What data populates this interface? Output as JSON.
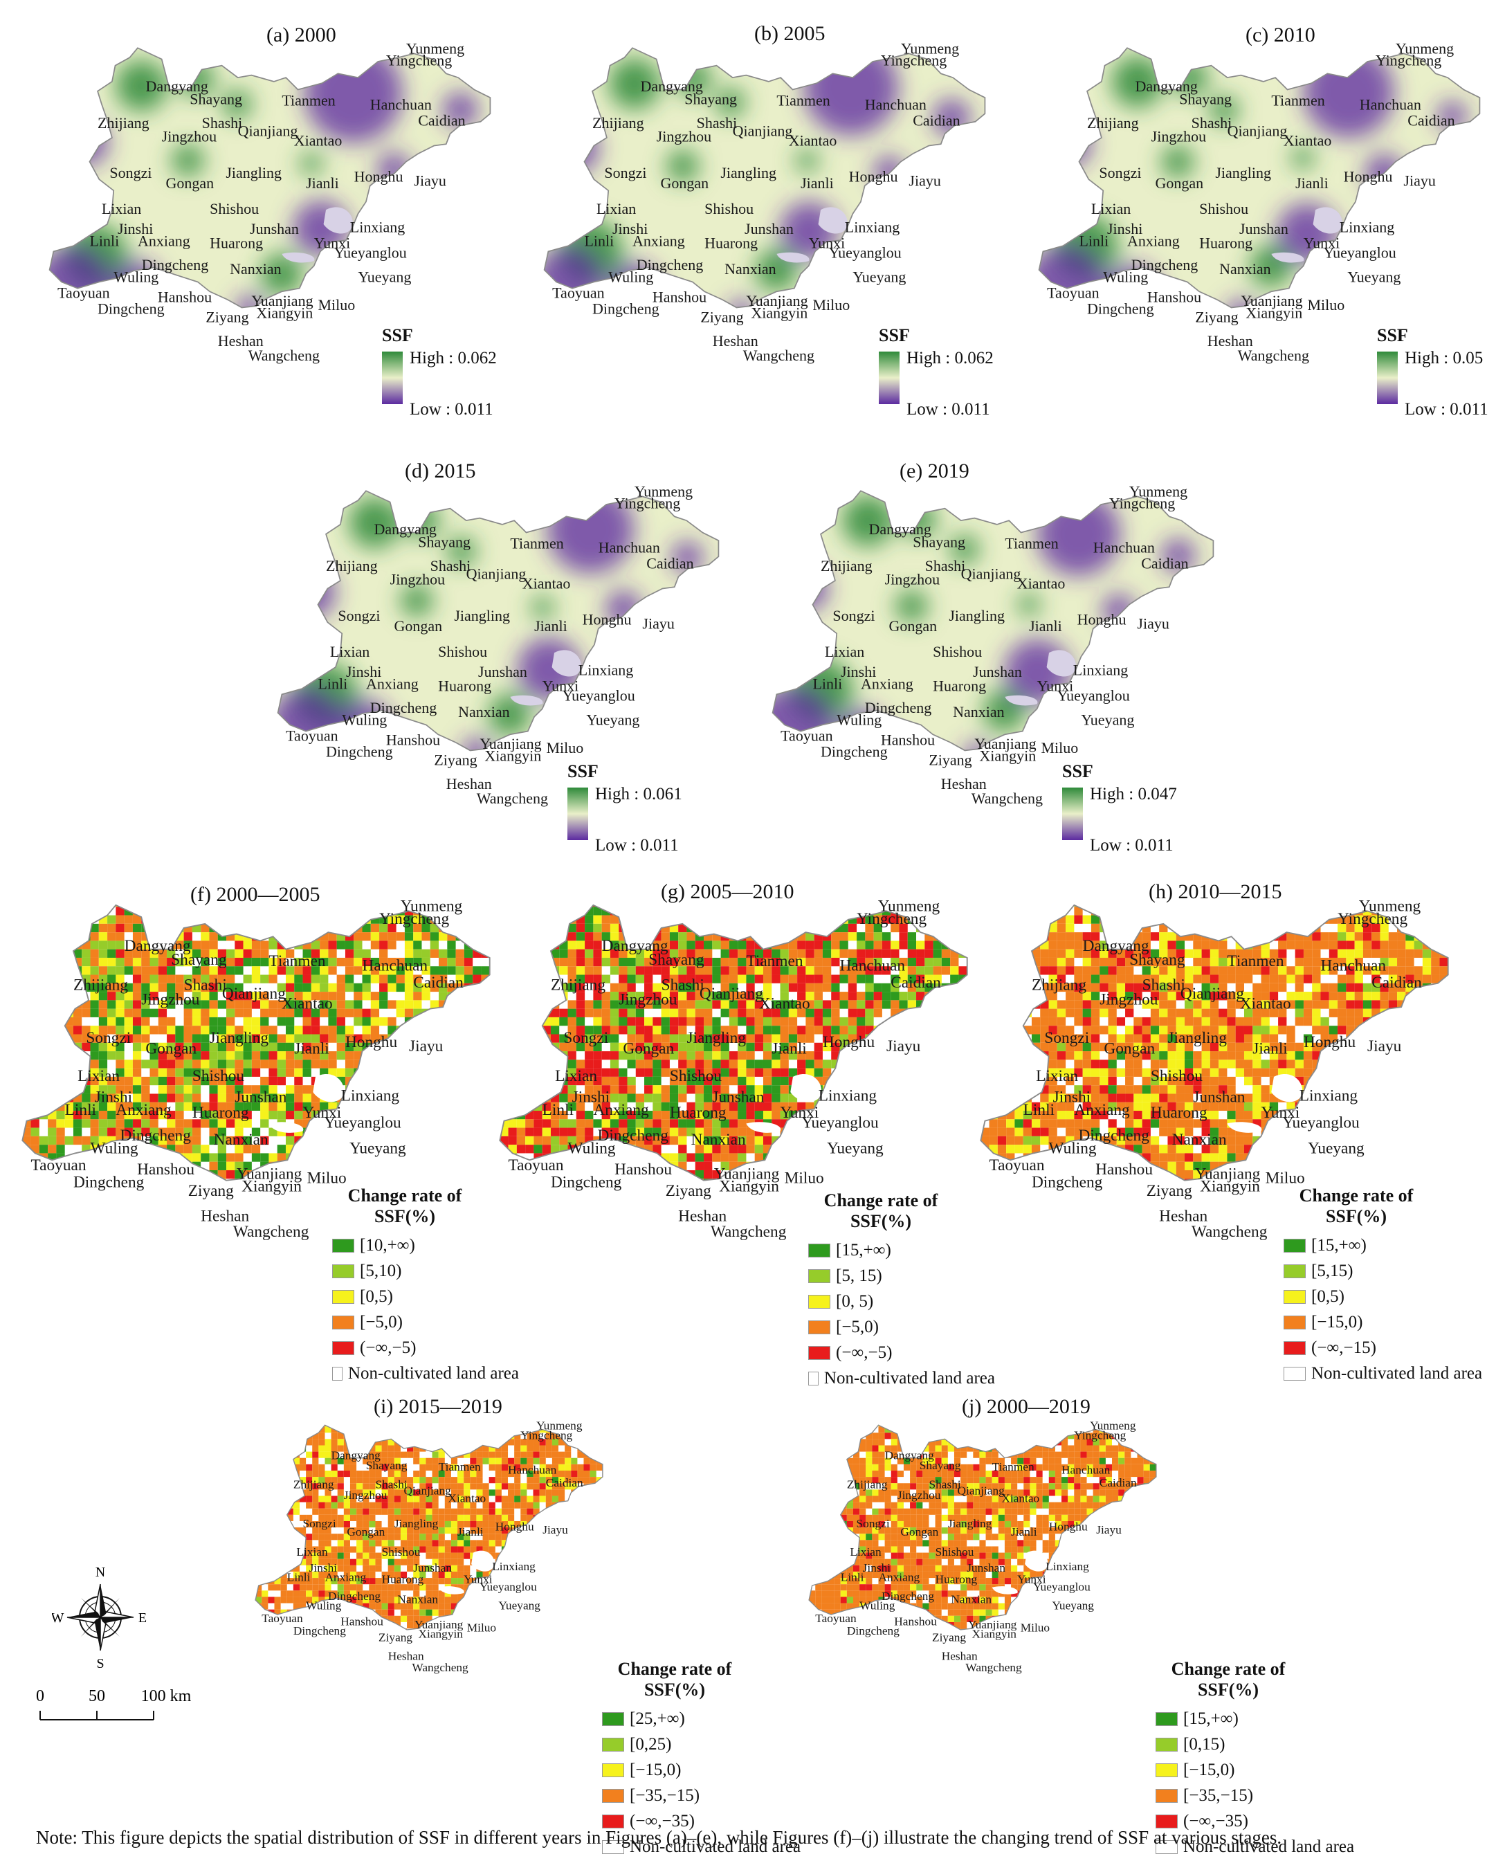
{
  "colors": {
    "ssf_high": "#2f8a3a",
    "ssf_mid": "#e9efc9",
    "ssf_low": "#5b2aa0",
    "class_1": "#2e9a1e",
    "class_2": "#96cc2a",
    "class_3": "#f6f21c",
    "class_4": "#f2801e",
    "class_5": "#e81c1c",
    "non_cultivated": "#ffffff"
  },
  "places": [
    "Yunmeng",
    "Yingcheng",
    "Dangyang",
    "Shayang",
    "Tianmen",
    "Hanchuan",
    "Caidian",
    "Zhijiang",
    "Shashi",
    "Jingzhou",
    "Qianjiang",
    "Xiantao",
    "Songzi",
    "Jiangling",
    "Gongan",
    "Jianli",
    "Honghu",
    "Jiayu",
    "Lixian",
    "Shishou",
    "Jinshi",
    "Junshan",
    "Linxiang",
    "Linli",
    "Anxiang",
    "Huarong",
    "Yunxi",
    "Dingcheng",
    "Yueyanglou",
    "Nanxian",
    "Wuling",
    "Yueyang",
    "Taoyuan",
    "Hanshou",
    "Yuanjiang",
    "Miluo",
    "Dingcheng",
    "Ziyang",
    "Xiangyin",
    "Heshan",
    "Wangcheng"
  ],
  "ssf_maps": [
    {
      "title": "(a) 2000",
      "legend_title": "SSF",
      "high": "High : 0.062",
      "low": "Low : 0.011"
    },
    {
      "title": "(b) 2005",
      "legend_title": "SSF",
      "high": "High : 0.062",
      "low": "Low : 0.011"
    },
    {
      "title": "(c) 2010",
      "legend_title": "SSF",
      "high": "High : 0.05",
      "low": "Low : 0.011"
    },
    {
      "title": "(d) 2015",
      "legend_title": "SSF",
      "high": "High : 0.061",
      "low": "Low : 0.011"
    },
    {
      "title": "(e) 2019",
      "legend_title": "SSF",
      "high": "High : 0.047",
      "low": "Low : 0.011"
    }
  ],
  "change_maps": [
    {
      "title": "(f) 2000—2005",
      "legend_title": "Change rate of SSF(%)",
      "classes": [
        "[10,+∞)",
        "[5,10)",
        "[0,5)",
        "[−5,0)",
        "(−∞,−5)",
        "Non-cultivated land area"
      ]
    },
    {
      "title": "(g) 2005—2010",
      "legend_title": "Change rate of SSF(%)",
      "classes": [
        "[15,+∞)",
        "[5, 15)",
        "[0, 5)",
        "[−5,0)",
        "(−∞,−5)",
        "Non-cultivated land area"
      ]
    },
    {
      "title": "(h) 2010—2015",
      "legend_title": "Change rate of SSF(%)",
      "classes": [
        "[15,+∞)",
        "[5,15)",
        "[0,5)",
        "[−15,0)",
        "(−∞,−15)",
        "Non-cultivated land area"
      ]
    },
    {
      "title": "(i) 2015—2019",
      "legend_title": "Change rate of SSF(%)",
      "classes": [
        "[25,+∞)",
        "[0,25)",
        "[−15,0)",
        "[−35,−15)",
        "(−∞,−35)",
        "Non-cultivated land area"
      ]
    },
    {
      "title": "(j) 2000—2019",
      "legend_title": "Change rate of SSF(%)",
      "classes": [
        "[15,+∞)",
        "[0,15)",
        "[−15,0)",
        "[−35,−15)",
        "(−∞,−35)",
        "Non-cultivated land area"
      ]
    }
  ],
  "compass": {
    "n": "N",
    "s": "S",
    "e": "E",
    "w": "W"
  },
  "scale": {
    "t0": "0",
    "t1": "50",
    "t2": "100 km"
  },
  "note": "Note: This figure depicts the spatial distribution of SSF in different years in Figures (a)–(e), while Figures (f)–(j) illustrate the changing trend of SSF at various stages."
}
